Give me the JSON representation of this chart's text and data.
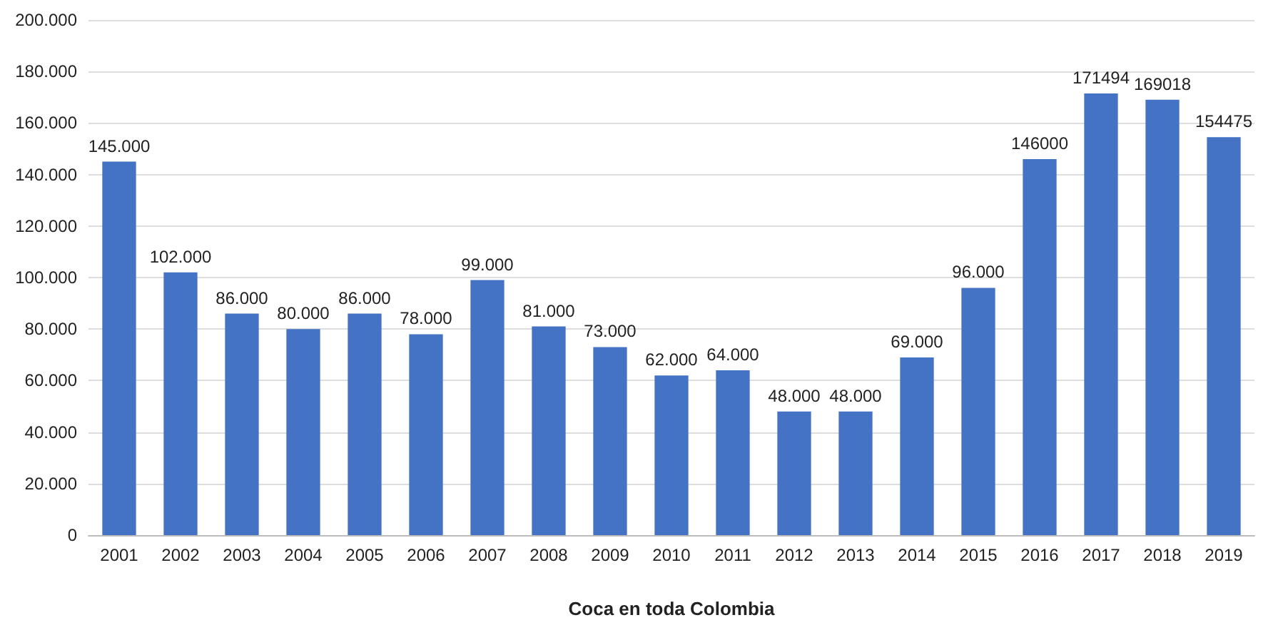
{
  "chart_data": {
    "type": "bar",
    "xlabel": "Coca en toda Colombia",
    "categories": [
      "2001",
      "2002",
      "2003",
      "2004",
      "2005",
      "2006",
      "2007",
      "2008",
      "2009",
      "2010",
      "2011",
      "2012",
      "2013",
      "2014",
      "2015",
      "2016",
      "2017",
      "2018",
      "2019"
    ],
    "series": [
      {
        "color": "#4472c4",
        "values": [
          145000,
          102000,
          86000,
          80000,
          86000,
          78000,
          99000,
          81000,
          73000,
          62000,
          64000,
          48000,
          48000,
          69000,
          96000,
          146000,
          171494,
          169018,
          154475
        ],
        "value_labels": [
          "145.000",
          "102.000",
          "86.000",
          "80.000",
          "86.000",
          "78.000",
          "99.000",
          "81.000",
          "73.000",
          "62.000",
          "64.000",
          "48.000",
          "48.000",
          "69.000",
          "96.000",
          "146000",
          "171494",
          "169018",
          "154475"
        ]
      }
    ],
    "ylim": [
      0,
      200000
    ],
    "yticks": [
      {
        "value": 0,
        "label": "0"
      },
      {
        "value": 20000,
        "label": "20.000"
      },
      {
        "value": 40000,
        "label": "40.000"
      },
      {
        "value": 60000,
        "label": "60.000"
      },
      {
        "value": 80000,
        "label": "80.000"
      },
      {
        "value": 100000,
        "label": "100.000"
      },
      {
        "value": 120000,
        "label": "120.000"
      },
      {
        "value": 140000,
        "label": "140.000"
      },
      {
        "value": 160000,
        "label": "160.000"
      },
      {
        "value": 180000,
        "label": "180.000"
      },
      {
        "value": 200000,
        "label": "200.000"
      }
    ],
    "grid": "y"
  }
}
